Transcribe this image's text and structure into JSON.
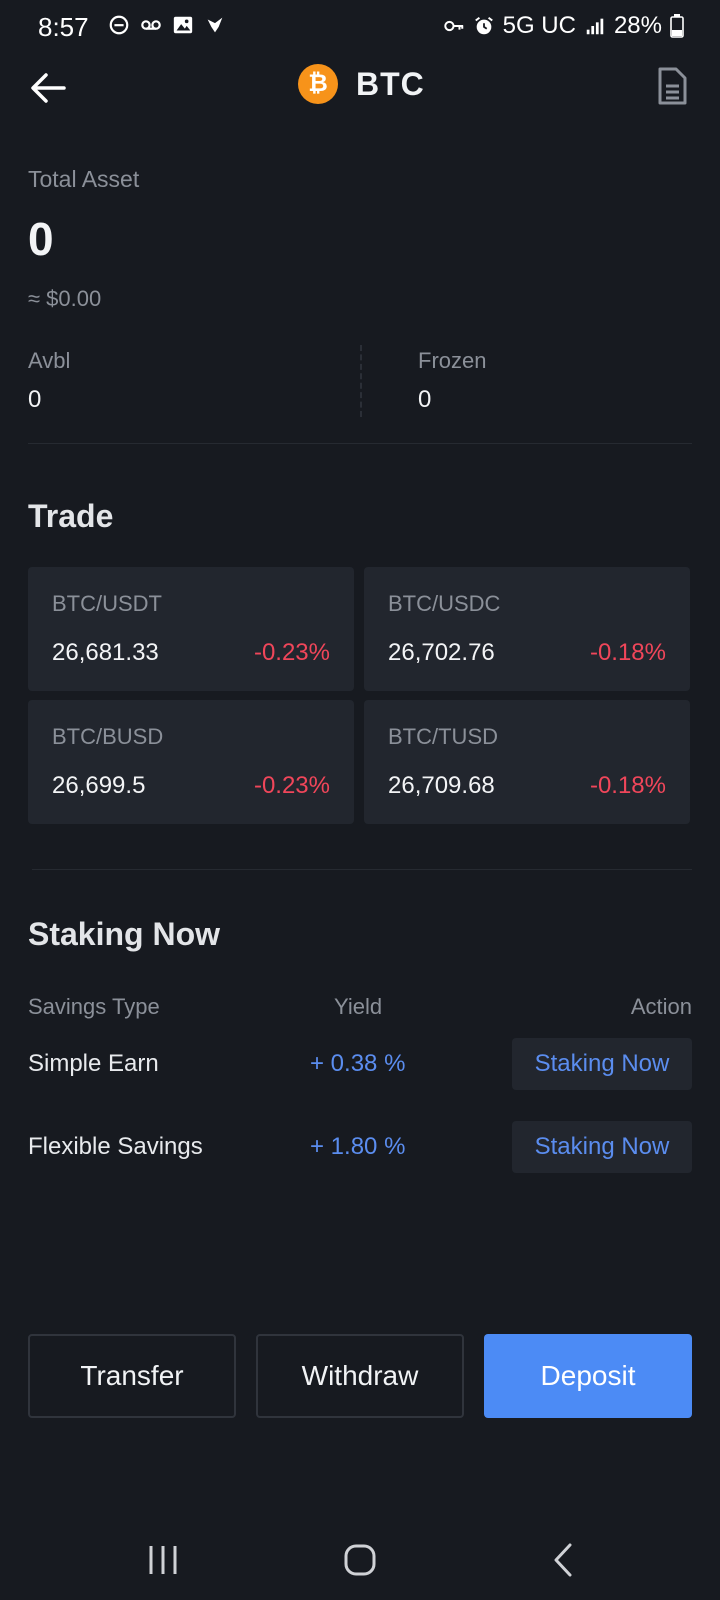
{
  "status_bar": {
    "time": "8:57",
    "network": "5G UC",
    "battery": "28%",
    "left_icons": [
      "do-not-disturb-icon",
      "voicemail-icon",
      "gallery-icon",
      "app-notification-icon"
    ],
    "right_icons": [
      "vpn-key-icon",
      "alarm-icon",
      "signal-icon",
      "battery-icon"
    ]
  },
  "header": {
    "title": "BTC",
    "logo_glyph": "₿",
    "logo_color": "#f7931a"
  },
  "asset": {
    "total_label": "Total Asset",
    "total_value": "0",
    "approx_value": "≈ $0.00",
    "avbl_label": "Avbl",
    "avbl_value": "0",
    "frozen_label": "Frozen",
    "frozen_value": "0"
  },
  "trade": {
    "heading": "Trade",
    "pairs": [
      {
        "name": "BTC/USDT",
        "price": "26,681.33",
        "change": "-0.23%"
      },
      {
        "name": "BTC/USDC",
        "price": "26,702.76",
        "change": "-0.18%"
      },
      {
        "name": "BTC/BUSD",
        "price": "26,699.5",
        "change": "-0.23%"
      },
      {
        "name": "BTC/TUSD",
        "price": "26,709.68",
        "change": "-0.18%"
      }
    ]
  },
  "staking": {
    "heading": "Staking Now",
    "columns": {
      "type": "Savings Type",
      "yield": "Yield",
      "action": "Action"
    },
    "rows": [
      {
        "type": "Simple Earn",
        "yield": "+ 0.38 %",
        "action": "Staking Now"
      },
      {
        "type": "Flexible Savings",
        "yield": "+ 1.80 %",
        "action": "Staking Now"
      }
    ]
  },
  "actions": {
    "transfer": "Transfer",
    "withdraw": "Withdraw",
    "deposit": "Deposit"
  },
  "colors": {
    "background": "#171a20",
    "card": "#22262e",
    "negative": "#f0465a",
    "accent": "#4c8bf5"
  }
}
